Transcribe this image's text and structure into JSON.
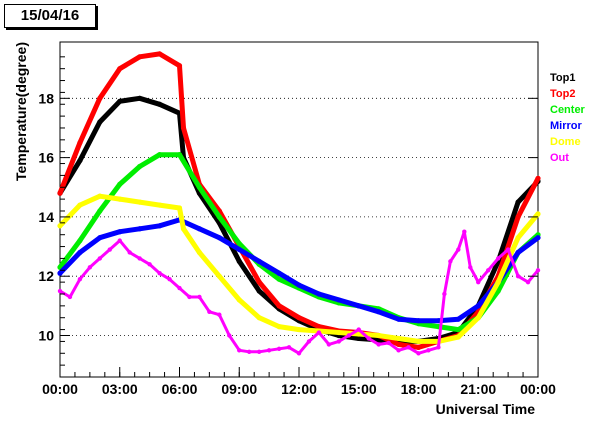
{
  "chart_data": {
    "type": "scatter",
    "title": "15/04/16",
    "xlabel": "Universal Time",
    "ylabel": "Temperature(degree)",
    "xlim": [
      0,
      24
    ],
    "ylim": [
      8.6,
      19.9
    ],
    "x_ticks": [
      {
        "x": 0,
        "label": "00:00"
      },
      {
        "x": 3,
        "label": "03:00"
      },
      {
        "x": 6,
        "label": "06:00"
      },
      {
        "x": 9,
        "label": "09:00"
      },
      {
        "x": 12,
        "label": "12:00"
      },
      {
        "x": 15,
        "label": "15:00"
      },
      {
        "x": 18,
        "label": "18:00"
      },
      {
        "x": 21,
        "label": "21:00"
      },
      {
        "x": 24,
        "label": "00:00"
      }
    ],
    "y_ticks": [
      {
        "y": 10,
        "label": "10"
      },
      {
        "y": 12,
        "label": "12"
      },
      {
        "y": 14,
        "label": "14"
      },
      {
        "y": 16,
        "label": "16"
      },
      {
        "y": 18,
        "label": "18"
      }
    ],
    "grid": "horizontal dotted",
    "legend_position": "right",
    "series": [
      {
        "name": "Top1",
        "color": "#000000",
        "points": [
          [
            0,
            14.8
          ],
          [
            1,
            15.9
          ],
          [
            2,
            17.2
          ],
          [
            3,
            17.9
          ],
          [
            4,
            18.0
          ],
          [
            5,
            17.8
          ],
          [
            6,
            17.5
          ],
          [
            6.2,
            16.0
          ],
          [
            7,
            14.8
          ],
          [
            8,
            13.8
          ],
          [
            9,
            12.5
          ],
          [
            10,
            11.5
          ],
          [
            11,
            10.9
          ],
          [
            12,
            10.5
          ],
          [
            13,
            10.2
          ],
          [
            14,
            10.0
          ],
          [
            15,
            9.9
          ],
          [
            16,
            9.85
          ],
          [
            17,
            9.8
          ],
          [
            18,
            9.8
          ],
          [
            19,
            9.9
          ],
          [
            20,
            10.1
          ],
          [
            21,
            11.0
          ],
          [
            22,
            12.5
          ],
          [
            23,
            14.5
          ],
          [
            24,
            15.2
          ]
        ]
      },
      {
        "name": "Top2",
        "color": "#ff0000",
        "points": [
          [
            0,
            14.8
          ],
          [
            1,
            16.5
          ],
          [
            2,
            18.0
          ],
          [
            3,
            19.0
          ],
          [
            4,
            19.4
          ],
          [
            5,
            19.5
          ],
          [
            6,
            19.1
          ],
          [
            6.2,
            17.0
          ],
          [
            7,
            15.1
          ],
          [
            8,
            14.2
          ],
          [
            9,
            13.0
          ],
          [
            10,
            11.8
          ],
          [
            11,
            11.0
          ],
          [
            12,
            10.6
          ],
          [
            13,
            10.3
          ],
          [
            14,
            10.15
          ],
          [
            15,
            10.1
          ],
          [
            16,
            10.0
          ],
          [
            17,
            9.7
          ],
          [
            18,
            9.6
          ],
          [
            19,
            9.8
          ],
          [
            20,
            10.0
          ],
          [
            21,
            10.8
          ],
          [
            22,
            12.0
          ],
          [
            23,
            14.0
          ],
          [
            24,
            15.3
          ]
        ]
      },
      {
        "name": "Center",
        "color": "#00ee00",
        "points": [
          [
            0,
            12.3
          ],
          [
            1,
            13.2
          ],
          [
            2,
            14.2
          ],
          [
            3,
            15.1
          ],
          [
            4,
            15.7
          ],
          [
            5,
            16.1
          ],
          [
            6,
            16.1
          ],
          [
            7,
            15.0
          ],
          [
            8,
            14.0
          ],
          [
            9,
            13.1
          ],
          [
            10,
            12.4
          ],
          [
            11,
            11.9
          ],
          [
            12,
            11.6
          ],
          [
            13,
            11.3
          ],
          [
            14,
            11.1
          ],
          [
            15,
            11.0
          ],
          [
            16,
            10.9
          ],
          [
            17,
            10.6
          ],
          [
            18,
            10.4
          ],
          [
            19,
            10.3
          ],
          [
            20,
            10.2
          ],
          [
            21,
            10.6
          ],
          [
            22,
            11.5
          ],
          [
            23,
            12.8
          ],
          [
            24,
            13.4
          ]
        ]
      },
      {
        "name": "Mirror",
        "color": "#0000ff",
        "points": [
          [
            0,
            12.1
          ],
          [
            1,
            12.8
          ],
          [
            2,
            13.3
          ],
          [
            3,
            13.5
          ],
          [
            4,
            13.6
          ],
          [
            5,
            13.7
          ],
          [
            6,
            13.9
          ],
          [
            7,
            13.6
          ],
          [
            8,
            13.3
          ],
          [
            9,
            12.9
          ],
          [
            10,
            12.5
          ],
          [
            11,
            12.1
          ],
          [
            12,
            11.7
          ],
          [
            13,
            11.4
          ],
          [
            14,
            11.2
          ],
          [
            15,
            11.0
          ],
          [
            16,
            10.8
          ],
          [
            17,
            10.55
          ],
          [
            18,
            10.5
          ],
          [
            19,
            10.5
          ],
          [
            20,
            10.55
          ],
          [
            21,
            11.0
          ],
          [
            22,
            11.8
          ],
          [
            23,
            12.8
          ],
          [
            24,
            13.3
          ]
        ]
      },
      {
        "name": "Dome",
        "color": "#ffff00",
        "points": [
          [
            0,
            13.7
          ],
          [
            1,
            14.4
          ],
          [
            2,
            14.7
          ],
          [
            3,
            14.6
          ],
          [
            4,
            14.5
          ],
          [
            5,
            14.4
          ],
          [
            6,
            14.3
          ],
          [
            6.2,
            13.6
          ],
          [
            7,
            12.8
          ],
          [
            8,
            12.0
          ],
          [
            9,
            11.2
          ],
          [
            10,
            10.6
          ],
          [
            11,
            10.3
          ],
          [
            12,
            10.2
          ],
          [
            13,
            10.15
          ],
          [
            14,
            10.1
          ],
          [
            15,
            10.05
          ],
          [
            16,
            10.0
          ],
          [
            17,
            9.9
          ],
          [
            18,
            9.8
          ],
          [
            19,
            9.8
          ],
          [
            20,
            9.95
          ],
          [
            21,
            10.6
          ],
          [
            22,
            11.8
          ],
          [
            23,
            13.3
          ],
          [
            24,
            14.1
          ]
        ]
      },
      {
        "name": "Out",
        "color": "#ff00ff",
        "points": [
          [
            0,
            11.5
          ],
          [
            0.5,
            11.3
          ],
          [
            1,
            11.9
          ],
          [
            1.5,
            12.3
          ],
          [
            2,
            12.6
          ],
          [
            2.5,
            12.9
          ],
          [
            3,
            13.2
          ],
          [
            3.5,
            12.8
          ],
          [
            4,
            12.6
          ],
          [
            4.5,
            12.4
          ],
          [
            5,
            12.1
          ],
          [
            5.5,
            11.9
          ],
          [
            6,
            11.6
          ],
          [
            6.5,
            11.3
          ],
          [
            7,
            11.3
          ],
          [
            7.5,
            10.8
          ],
          [
            8,
            10.7
          ],
          [
            8.5,
            10.0
          ],
          [
            9,
            9.5
          ],
          [
            9.5,
            9.45
          ],
          [
            10,
            9.45
          ],
          [
            10.5,
            9.5
          ],
          [
            11,
            9.55
          ],
          [
            11.5,
            9.6
          ],
          [
            12,
            9.4
          ],
          [
            12.5,
            9.8
          ],
          [
            13,
            10.1
          ],
          [
            13.5,
            9.7
          ],
          [
            14,
            9.8
          ],
          [
            14.5,
            10.0
          ],
          [
            15,
            10.2
          ],
          [
            15.5,
            9.9
          ],
          [
            16,
            9.7
          ],
          [
            16.5,
            9.75
          ],
          [
            17,
            9.5
          ],
          [
            17.5,
            9.6
          ],
          [
            18,
            9.4
          ],
          [
            18.5,
            9.5
          ],
          [
            19,
            9.6
          ],
          [
            19.3,
            11.4
          ],
          [
            19.6,
            12.5
          ],
          [
            20,
            12.9
          ],
          [
            20.3,
            13.5
          ],
          [
            20.6,
            12.3
          ],
          [
            21,
            11.8
          ],
          [
            21.5,
            12.2
          ],
          [
            22,
            12.6
          ],
          [
            22.5,
            12.9
          ],
          [
            23,
            12.0
          ],
          [
            23.5,
            11.8
          ],
          [
            24,
            12.2
          ]
        ]
      }
    ]
  }
}
